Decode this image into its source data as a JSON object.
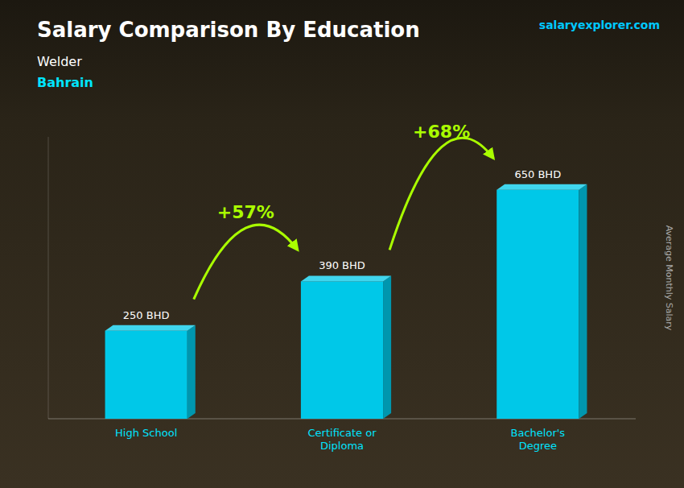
{
  "chart_data": {
    "type": "bar",
    "title": "Salary Comparison By Education",
    "subtitle": [
      "Welder",
      "Bahrain"
    ],
    "y_label": "Average Monthly Salary",
    "categories": [
      "High School",
      "Certificate or\nDiploma",
      "Bachelor's\nDegree"
    ],
    "values": [
      250,
      390,
      650
    ],
    "value_labels": [
      "250 BHD",
      "390 BHD",
      "650 BHD"
    ],
    "data_labels": true,
    "color": "#00c8e8",
    "ylim": [
      0,
      800
    ],
    "tick_labels": "x",
    "grid": false,
    "annotations": [
      "+57%",
      "+68%"
    ],
    "watermark": "salaryexplorer.com"
  }
}
